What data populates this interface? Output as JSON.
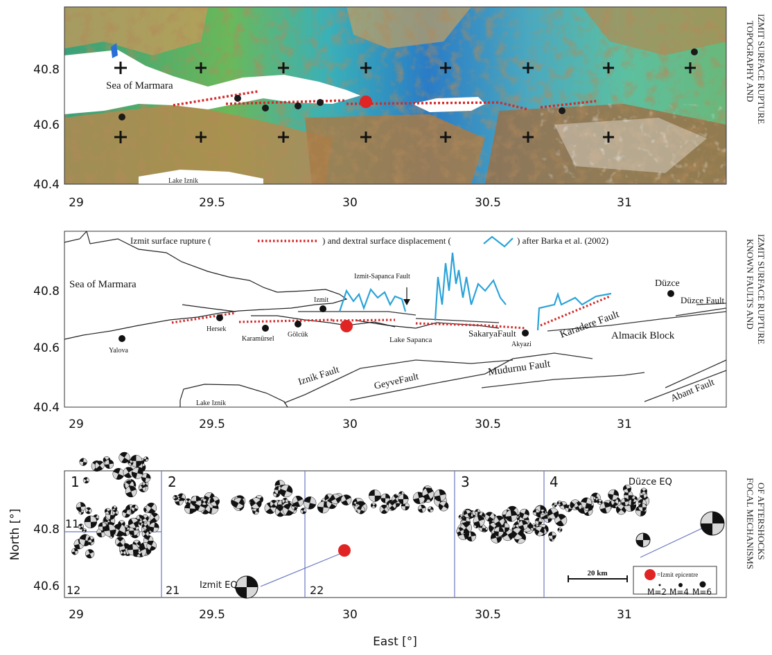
{
  "panels": {
    "topo": {
      "side_label_line1": "TOPOGRAPHY AND",
      "side_label_line2": "IZMIT SURFACE RUPTURE",
      "place_sea": "Sea of Marmara",
      "place_lake": "Lake Iznik",
      "x_ticks": [
        "29",
        "29.5",
        "30",
        "30.5",
        "31"
      ],
      "y_ticks": [
        "40.8",
        "40.6",
        "40.4"
      ]
    },
    "faults": {
      "side_label_line1": "KNOWN FAULTS AND",
      "side_label_line2": "IZMIT SURFACE RUPTURE",
      "legend_part1": "Izmit surface rupture (",
      "legend_part2": ") and dextral surface displacement (",
      "legend_part3": ") after Barka et al. (2002)",
      "x_ticks": [
        "29",
        "29.5",
        "30",
        "30.5",
        "31"
      ],
      "y_ticks": [
        "40.8",
        "40.6",
        "40.4"
      ],
      "places": {
        "sea": "Sea of Marmara",
        "duzce": "Düzce",
        "izmit": "Izmit",
        "izmit_sapanca_fault": "Izmit-Sapanca Fault",
        "duzce_fault": "Düzce Fault",
        "yalova": "Yalova",
        "hersek": "Hersek",
        "karamursel": "Karamürsel",
        "golcuk": "Gölcük",
        "lake_sapanca": "Lake Sapanca",
        "sakarya_fault": "SakaryaFault",
        "akyazi": "Akyazi",
        "karadere_fault": "Karadere Fault",
        "almacik_block": "Almacik Block",
        "iznik_fault": "Iznik Fault",
        "geyve_fault": "GeyveFault",
        "mudurnu_fault": "Mudurnu Fault",
        "abant_fault": "Abant Fault",
        "lake_iznik": "Lake Iznik"
      }
    },
    "focal": {
      "side_label_line1": "FOCAL MECHANISMS",
      "side_label_line2": "OF AFTERSHOCKS",
      "y_axis_label": "North [°]",
      "x_axis_label": "East [°]",
      "x_ticks": [
        "29",
        "29.5",
        "30",
        "30.5",
        "31"
      ],
      "y_ticks": [
        "40.8",
        "40.6"
      ],
      "region_numbers": [
        "1",
        "2",
        "3",
        "4"
      ],
      "subregion_numbers": [
        "11",
        "12",
        "21",
        "22"
      ],
      "izmit_eq": "Izmit EQ",
      "duzce_eq": "Düzce EQ",
      "legend_epicentre": "=Izmit epicentre",
      "legend_m2": "M=2",
      "legend_m4": "M=4",
      "legend_m6": "M=6",
      "scale_bar": "20 km"
    }
  },
  "colors": {
    "rupture_red": "#d42a2a",
    "epicentre_red": "#e02424",
    "displacement_blue": "#2aa3d8",
    "panel_border": "#333333",
    "region_line": "#6b79c0"
  }
}
